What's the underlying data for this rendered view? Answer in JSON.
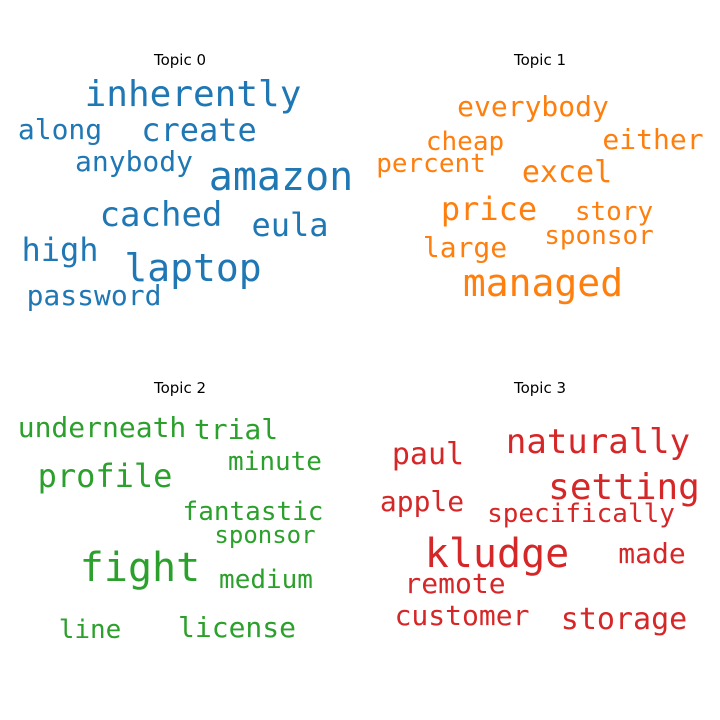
{
  "chart_data": {
    "type": "wordcloud",
    "panels": [
      {
        "title": "Topic 0",
        "color": "#1f77b4",
        "words": [
          "inherently",
          "create",
          "along",
          "anybody",
          "amazon",
          "cached",
          "eula",
          "high",
          "laptop",
          "password"
        ]
      },
      {
        "title": "Topic 1",
        "color": "#ff7f0e",
        "words": [
          "everybody",
          "cheap",
          "either",
          "percent",
          "excel",
          "price",
          "story",
          "sponsor",
          "large",
          "managed"
        ]
      },
      {
        "title": "Topic 2",
        "color": "#2ca02c",
        "words": [
          "underneath",
          "trial",
          "profile",
          "minute",
          "fantastic",
          "sponsor",
          "fight",
          "medium",
          "line",
          "license"
        ]
      },
      {
        "title": "Topic 3",
        "color": "#d62728",
        "words": [
          "naturally",
          "paul",
          "setting",
          "apple",
          "specifically",
          "kludge",
          "made",
          "remote",
          "customer",
          "storage"
        ]
      }
    ]
  }
}
